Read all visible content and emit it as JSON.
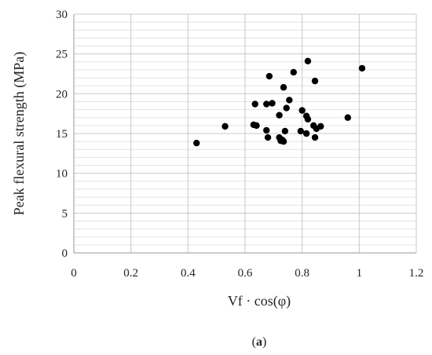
{
  "chart_data": {
    "type": "scatter",
    "title": "",
    "xlabel": "Vf · cos(φ)",
    "ylabel": "Peak flexural strength (MPa)",
    "xlim": [
      0,
      1.2
    ],
    "ylim": [
      0,
      30
    ],
    "x_ticks": [
      "0",
      "0.2",
      "0.4",
      "0.6",
      "0.8",
      "1",
      "1.2"
    ],
    "y_ticks": [
      "0",
      "5",
      "10",
      "15",
      "20",
      "25",
      "30"
    ],
    "grid": {
      "major": true,
      "minor_horizontal": true
    },
    "marker_color": "#000000",
    "points": [
      {
        "x": 0.43,
        "y": 13.8
      },
      {
        "x": 0.53,
        "y": 15.9
      },
      {
        "x": 0.63,
        "y": 16.1
      },
      {
        "x": 0.64,
        "y": 16.0
      },
      {
        "x": 0.635,
        "y": 18.7
      },
      {
        "x": 0.675,
        "y": 18.7
      },
      {
        "x": 0.695,
        "y": 18.8
      },
      {
        "x": 0.675,
        "y": 15.4
      },
      {
        "x": 0.68,
        "y": 14.5
      },
      {
        "x": 0.685,
        "y": 22.2
      },
      {
        "x": 0.72,
        "y": 17.3
      },
      {
        "x": 0.725,
        "y": 14.1
      },
      {
        "x": 0.73,
        "y": 14.2
      },
      {
        "x": 0.735,
        "y": 14.0
      },
      {
        "x": 0.72,
        "y": 14.5
      },
      {
        "x": 0.74,
        "y": 15.3
      },
      {
        "x": 0.735,
        "y": 20.8
      },
      {
        "x": 0.745,
        "y": 18.2
      },
      {
        "x": 0.755,
        "y": 19.2
      },
      {
        "x": 0.77,
        "y": 22.7
      },
      {
        "x": 0.795,
        "y": 15.3
      },
      {
        "x": 0.8,
        "y": 17.9
      },
      {
        "x": 0.815,
        "y": 15.0
      },
      {
        "x": 0.815,
        "y": 17.2
      },
      {
        "x": 0.82,
        "y": 16.8
      },
      {
        "x": 0.82,
        "y": 24.1
      },
      {
        "x": 0.84,
        "y": 16.0
      },
      {
        "x": 0.845,
        "y": 14.5
      },
      {
        "x": 0.85,
        "y": 15.6
      },
      {
        "x": 0.845,
        "y": 21.6
      },
      {
        "x": 0.865,
        "y": 15.9
      },
      {
        "x": 0.96,
        "y": 17.0
      },
      {
        "x": 1.01,
        "y": 23.2
      }
    ]
  },
  "caption": {
    "label": "a"
  }
}
